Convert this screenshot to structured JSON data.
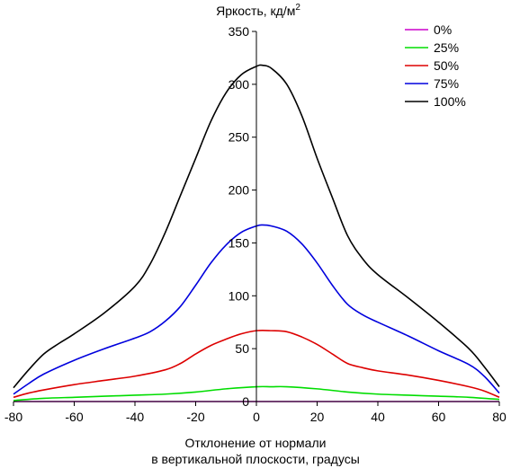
{
  "chart_data": {
    "type": "line",
    "title": "",
    "ylabel": "Яркость, кд/м",
    "ylabel_superscript": "2",
    "xlabel_lines": [
      "Отклонение от нормали",
      "в вертикальной плоскости, градусы"
    ],
    "xlim": [
      -80,
      80
    ],
    "ylim": [
      0,
      350
    ],
    "x_ticks": [
      -80,
      -60,
      -40,
      -20,
      0,
      20,
      40,
      60,
      80
    ],
    "y_ticks": [
      0,
      50,
      100,
      150,
      200,
      250,
      300,
      350
    ],
    "legend_position": "top-right",
    "grid": false,
    "series": [
      {
        "name": "0%",
        "color": "#cc00cc",
        "x": [
          -80,
          -60,
          -40,
          -20,
          0,
          20,
          40,
          60,
          80
        ],
        "y": [
          0,
          0,
          0,
          0,
          0,
          0,
          0,
          0,
          0
        ]
      },
      {
        "name": "25%",
        "color": "#00dd00",
        "x": [
          -80,
          -70,
          -60,
          -50,
          -40,
          -30,
          -20,
          -10,
          0,
          5,
          10,
          20,
          30,
          40,
          50,
          60,
          70,
          80
        ],
        "y": [
          1,
          3,
          4,
          5,
          6,
          7,
          9,
          12,
          14,
          14,
          14,
          12,
          9,
          7,
          6,
          5,
          4,
          2
        ]
      },
      {
        "name": "50%",
        "color": "#dd0000",
        "x": [
          -80,
          -75,
          -70,
          -60,
          -50,
          -40,
          -30,
          -25,
          -20,
          -15,
          -10,
          -5,
          0,
          5,
          10,
          15,
          20,
          25,
          30,
          35,
          40,
          50,
          60,
          70,
          75,
          80
        ],
        "y": [
          4,
          8,
          11,
          16,
          20,
          24,
          30,
          36,
          45,
          53,
          59,
          64,
          67,
          67,
          66,
          61,
          54,
          45,
          36,
          32,
          29,
          25,
          20,
          14,
          10,
          4
        ]
      },
      {
        "name": "75%",
        "color": "#0000dd",
        "x": [
          -80,
          -75,
          -70,
          -60,
          -50,
          -40,
          -35,
          -30,
          -25,
          -20,
          -15,
          -10,
          -5,
          0,
          2,
          5,
          10,
          15,
          20,
          25,
          30,
          35,
          40,
          50,
          60,
          70,
          75,
          80
        ],
        "y": [
          7,
          17,
          26,
          39,
          50,
          60,
          66,
          76,
          90,
          110,
          131,
          148,
          160,
          166,
          167,
          166,
          161,
          149,
          131,
          110,
          92,
          82,
          75,
          62,
          48,
          35,
          24,
          8
        ]
      },
      {
        "name": "100%",
        "color": "#000000",
        "x": [
          -80,
          -75,
          -70,
          -65,
          -60,
          -50,
          -40,
          -35,
          -30,
          -25,
          -20,
          -15,
          -10,
          -5,
          0,
          2,
          5,
          10,
          15,
          20,
          25,
          30,
          35,
          40,
          50,
          60,
          70,
          75,
          80
        ],
        "y": [
          13,
          30,
          45,
          55,
          64,
          84,
          109,
          130,
          160,
          195,
          230,
          265,
          292,
          309,
          317,
          318,
          315,
          300,
          270,
          230,
          193,
          157,
          135,
          120,
          98,
          75,
          50,
          33,
          14
        ]
      }
    ]
  }
}
